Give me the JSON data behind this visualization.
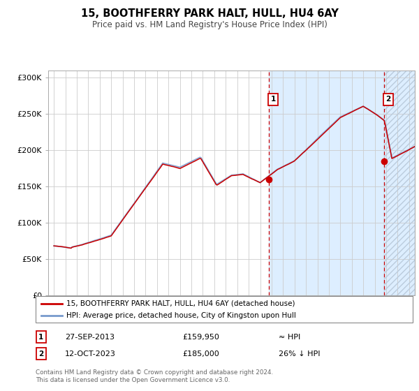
{
  "title": "15, BOOTHFERRY PARK HALT, HULL, HU4 6AY",
  "subtitle": "Price paid vs. HM Land Registry's House Price Index (HPI)",
  "ylabel_vals": [
    "£0",
    "£50K",
    "£100K",
    "£150K",
    "£200K",
    "£250K",
    "£300K"
  ],
  "ylim": [
    0,
    310000
  ],
  "xlim_start": 1994.5,
  "xlim_end": 2026.5,
  "sale1_x": 2013.74,
  "sale1_y": 159950,
  "sale2_x": 2023.79,
  "sale2_y": 185000,
  "sale1_date": "27-SEP-2013",
  "sale1_price": "£159,950",
  "sale1_note": "≈ HPI",
  "sale2_date": "12-OCT-2023",
  "sale2_price": "£185,000",
  "sale2_note": "26% ↓ HPI",
  "legend_line1": "15, BOOTHFERRY PARK HALT, HULL, HU4 6AY (detached house)",
  "legend_line2": "HPI: Average price, detached house, City of Kingston upon Hull",
  "footer": "Contains HM Land Registry data © Crown copyright and database right 2024.\nThis data is licensed under the Open Government Licence v3.0.",
  "hpi_color": "#7799cc",
  "price_color": "#cc0000",
  "bg_color": "#ffffff",
  "grid_color": "#cccccc",
  "shade_color": "#ddeeff",
  "hatch_color": "#bbccdd"
}
